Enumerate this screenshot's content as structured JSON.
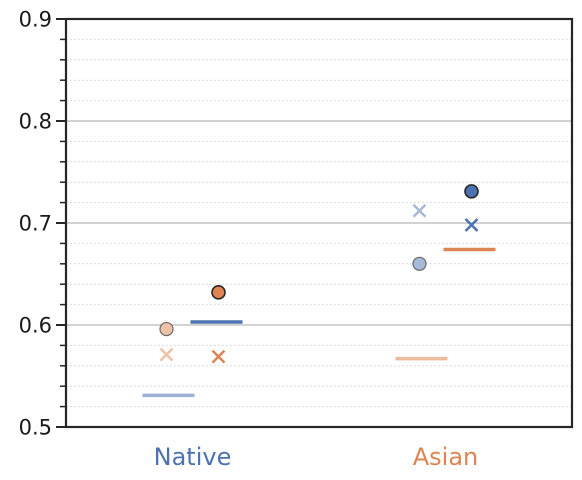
{
  "chart_data": {
    "type": "scatter",
    "title": "",
    "xlabel": "",
    "ylabel": "",
    "ylim": [
      0.5,
      0.9
    ],
    "y_major_ticks": [
      "0.5",
      "0.6",
      "0.7",
      "0.8",
      "0.9"
    ],
    "y_minor_step": 0.02,
    "grid": "horizontal major solid, minor dotted",
    "legend": "none",
    "categories": [
      "Native",
      "Asian"
    ],
    "category_colors": [
      "#4c72b0",
      "#dd8452"
    ],
    "series": [
      {
        "marker": "circle",
        "color": "#4c72b0",
        "alpha": "dark",
        "values": [
          null,
          0.731
        ]
      },
      {
        "marker": "circle",
        "color": "#dd8452",
        "alpha": "dark",
        "values": [
          0.632,
          null
        ]
      },
      {
        "marker": "circle",
        "color": "#4c72b0",
        "alpha": "light",
        "values": [
          null,
          0.66
        ]
      },
      {
        "marker": "circle",
        "color": "#dd8452",
        "alpha": "light",
        "values": [
          0.596,
          null
        ]
      },
      {
        "marker": "x",
        "color": "#4c72b0",
        "alpha": "dark",
        "values": [
          null,
          0.698
        ]
      },
      {
        "marker": "x",
        "color": "#dd8452",
        "alpha": "dark",
        "values": [
          0.569,
          null
        ]
      },
      {
        "marker": "x",
        "color": "#4c72b0",
        "alpha": "light",
        "values": [
          null,
          0.712
        ]
      },
      {
        "marker": "x",
        "color": "#dd8452",
        "alpha": "light",
        "values": [
          0.571,
          null
        ]
      },
      {
        "marker": "hline",
        "color": "#4c72b0",
        "alpha": "dark",
        "values": [
          0.603,
          null
        ]
      },
      {
        "marker": "hline",
        "color": "#dd8452",
        "alpha": "dark",
        "values": [
          null,
          0.674
        ]
      },
      {
        "marker": "hline",
        "color": "#4c72b0",
        "alpha": "light",
        "values": [
          0.531,
          null
        ]
      },
      {
        "marker": "hline",
        "color": "#dd8452",
        "alpha": "light",
        "values": [
          null,
          0.567
        ]
      }
    ]
  }
}
